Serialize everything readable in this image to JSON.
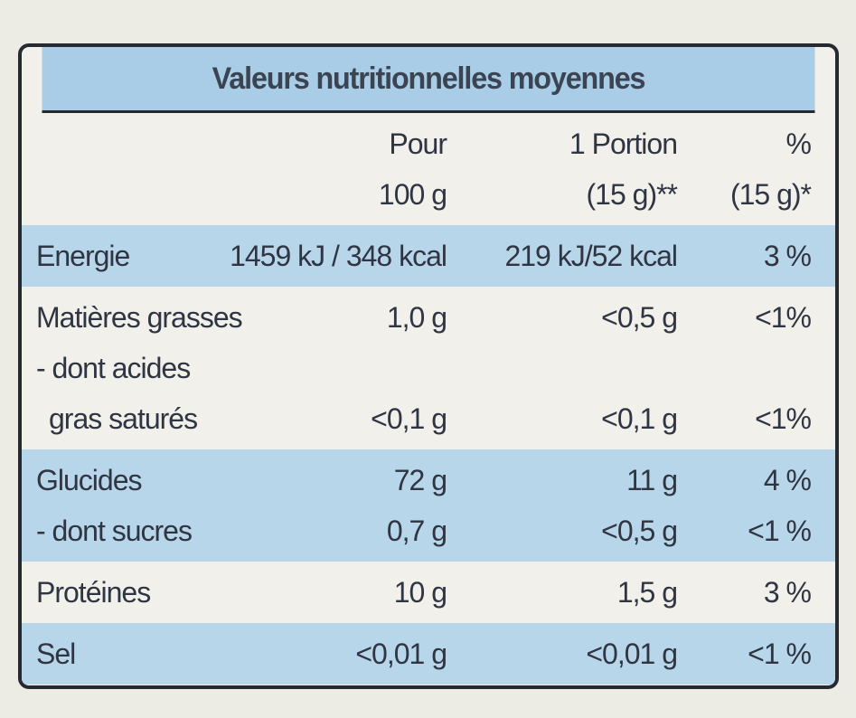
{
  "title": "Valeurs nutritionnelles moyennes",
  "header": [
    [
      "Pour",
      "100 g"
    ],
    [
      "1 Portion",
      "(15 g)**"
    ],
    [
      "%",
      "(15 g)*"
    ]
  ],
  "groups": [
    {
      "rows": [
        {
          "label": [
            "Energie"
          ],
          "values": [
            "1459 kJ / 348 kcal",
            "219 kJ/52 kcal",
            "3 %"
          ]
        }
      ]
    },
    {
      "rows": [
        {
          "label": [
            "Matières grasses"
          ],
          "values": [
            "1,0 g",
            "<0,5 g",
            "<1%"
          ]
        },
        {
          "label": [
            "- dont acides",
            "gras saturés"
          ],
          "values": [
            "<0,1 g",
            "<0,1 g",
            "<1%"
          ]
        }
      ]
    },
    {
      "rows": [
        {
          "label": [
            "Glucides"
          ],
          "values": [
            "72 g",
            "11 g",
            "4 %"
          ]
        },
        {
          "label": [
            "- dont sucres"
          ],
          "values": [
            "0,7 g",
            "<0,5 g",
            "<1 %"
          ]
        }
      ]
    },
    {
      "rows": [
        {
          "label": [
            "Protéines"
          ],
          "values": [
            "10 g",
            "1,5 g",
            "3 %"
          ]
        }
      ]
    },
    {
      "rows": [
        {
          "label": [
            "Sel"
          ],
          "values": [
            "<0,01 g",
            "<0,01 g",
            "<1 %"
          ]
        }
      ]
    }
  ]
}
